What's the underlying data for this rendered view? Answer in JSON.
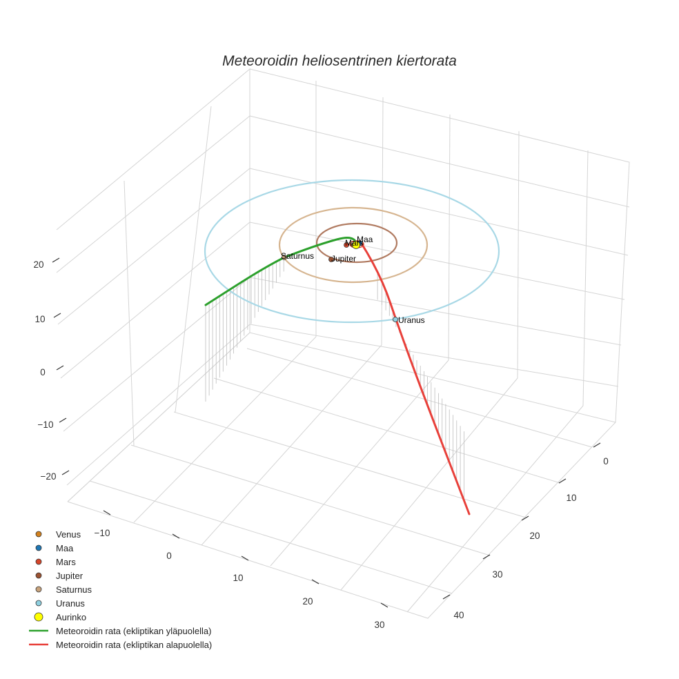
{
  "chart_data": {
    "type": "line3d",
    "title": "Meteoroidin heliosentrinen kiertorata",
    "axes": {
      "x": {
        "ticks": [
          "−10",
          "0",
          "10",
          "20",
          "30"
        ],
        "tick_values": [
          -10,
          0,
          10,
          20,
          30
        ]
      },
      "y": {
        "ticks": [
          "0",
          "10",
          "20",
          "30",
          "40"
        ],
        "tick_values": [
          0,
          10,
          20,
          30,
          40
        ]
      },
      "z": {
        "ticks": [
          "20",
          "10",
          "0",
          "−10",
          "−20"
        ],
        "tick_values": [
          20,
          10,
          0,
          -10,
          -20
        ]
      }
    },
    "bodies": [
      {
        "name": "Venus",
        "color": "#d2811e",
        "label": ""
      },
      {
        "name": "Maa",
        "color": "#1f77b4",
        "label": "Maa"
      },
      {
        "name": "Mars",
        "color": "#d6452a",
        "label": "Mars"
      },
      {
        "name": "Jupiter",
        "color": "#9c5232",
        "label": "Jupiter"
      },
      {
        "name": "Saturnus",
        "color": "#c8a37c",
        "label": "Saturnus"
      },
      {
        "name": "Uranus",
        "color": "#8fd0e0",
        "label": "Uranus"
      },
      {
        "name": "Aurinko",
        "color": "#ffff00",
        "label": ""
      }
    ],
    "orbits": [
      {
        "name": "Jupiter",
        "color": "#b07a60"
      },
      {
        "name": "Saturnus",
        "color": "#d6b590"
      },
      {
        "name": "Uranus",
        "color": "#a8d8e6"
      }
    ],
    "series": [
      {
        "name": "Meteoroidin rata (ekliptikan yläpuolella)",
        "color": "#2ca02c"
      },
      {
        "name": "Meteoroidin rata (ekliptikan alapuolella)",
        "color": "#e8403a"
      }
    ],
    "legend_position": "bottom-left",
    "grid": true
  }
}
